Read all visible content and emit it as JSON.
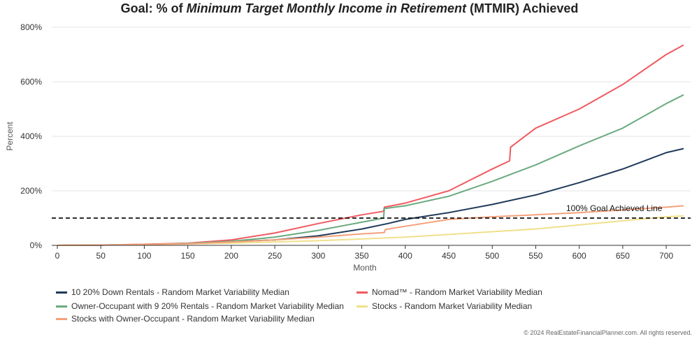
{
  "title": {
    "prefix": "Goal: % of ",
    "emphasis": "Minimum Target Monthly Income in Retirement",
    "suffix": " (MTMIR) Achieved"
  },
  "footer": "© 2024 RealEstateFinancialPlanner.com. All rights reserved.",
  "annotation": "100% Goal Achieved Line",
  "chart_data": {
    "type": "line",
    "xlabel": "Month",
    "ylabel": "Percent",
    "xlim": [
      0,
      720
    ],
    "ylim": [
      0,
      800
    ],
    "x_ticks": [
      "0",
      "50",
      "100",
      "150",
      "200",
      "250",
      "300",
      "350",
      "400",
      "450",
      "500",
      "550",
      "600",
      "650",
      "700"
    ],
    "y_ticks": [
      "0%",
      "200%",
      "400%",
      "600%",
      "800%"
    ],
    "goal_line": 100,
    "grid": "horizontal",
    "legend_position": "bottom",
    "series": [
      {
        "name": "10 20% Down Rentals - Random Market Variability Median",
        "color": "#1f3a5a",
        "points": [
          [
            0,
            0
          ],
          [
            50,
            1
          ],
          [
            100,
            3
          ],
          [
            150,
            7
          ],
          [
            200,
            13
          ],
          [
            250,
            20
          ],
          [
            300,
            35
          ],
          [
            350,
            60
          ],
          [
            380,
            80
          ],
          [
            400,
            95
          ],
          [
            450,
            120
          ],
          [
            500,
            150
          ],
          [
            550,
            185
          ],
          [
            600,
            230
          ],
          [
            650,
            280
          ],
          [
            700,
            340
          ],
          [
            720,
            355
          ]
        ]
      },
      {
        "name": "Nomad™ - Random Market Variability Median",
        "color": "#f05a60",
        "points": [
          [
            0,
            0
          ],
          [
            50,
            1
          ],
          [
            100,
            4
          ],
          [
            150,
            8
          ],
          [
            200,
            20
          ],
          [
            250,
            45
          ],
          [
            300,
            80
          ],
          [
            350,
            112
          ],
          [
            375,
            125
          ],
          [
            376,
            140
          ],
          [
            400,
            155
          ],
          [
            450,
            200
          ],
          [
            500,
            280
          ],
          [
            520,
            310
          ],
          [
            521,
            360
          ],
          [
            550,
            430
          ],
          [
            600,
            500
          ],
          [
            650,
            590
          ],
          [
            700,
            700
          ],
          [
            720,
            735
          ]
        ]
      },
      {
        "name": "Owner-Occupant with 9 20% Rentals - Random Market Variability Median",
        "color": "#6aaa7f",
        "points": [
          [
            0,
            0
          ],
          [
            50,
            1
          ],
          [
            100,
            3
          ],
          [
            150,
            7
          ],
          [
            200,
            15
          ],
          [
            250,
            30
          ],
          [
            300,
            55
          ],
          [
            350,
            85
          ],
          [
            375,
            100
          ],
          [
            376,
            135
          ],
          [
            400,
            145
          ],
          [
            450,
            180
          ],
          [
            500,
            235
          ],
          [
            550,
            295
          ],
          [
            600,
            365
          ],
          [
            650,
            430
          ],
          [
            700,
            520
          ],
          [
            720,
            552
          ]
        ]
      },
      {
        "name": "Stocks - Random Market Variability Median",
        "color": "#f0e08c",
        "points": [
          [
            0,
            0
          ],
          [
            100,
            3
          ],
          [
            200,
            8
          ],
          [
            300,
            17
          ],
          [
            400,
            30
          ],
          [
            500,
            50
          ],
          [
            550,
            60
          ],
          [
            600,
            75
          ],
          [
            650,
            90
          ],
          [
            700,
            105
          ],
          [
            720,
            108
          ]
        ]
      },
      {
        "name": "Stocks with Owner-Occupant - Random Market Variability Median",
        "color": "#f5a07a",
        "points": [
          [
            0,
            0
          ],
          [
            50,
            1
          ],
          [
            100,
            3
          ],
          [
            150,
            6
          ],
          [
            200,
            12
          ],
          [
            250,
            20
          ],
          [
            300,
            30
          ],
          [
            350,
            42
          ],
          [
            376,
            47
          ],
          [
            377,
            58
          ],
          [
            400,
            70
          ],
          [
            450,
            95
          ],
          [
            500,
            105
          ],
          [
            550,
            112
          ],
          [
            600,
            120
          ],
          [
            650,
            130
          ],
          [
            700,
            140
          ],
          [
            720,
            145
          ]
        ]
      }
    ]
  }
}
